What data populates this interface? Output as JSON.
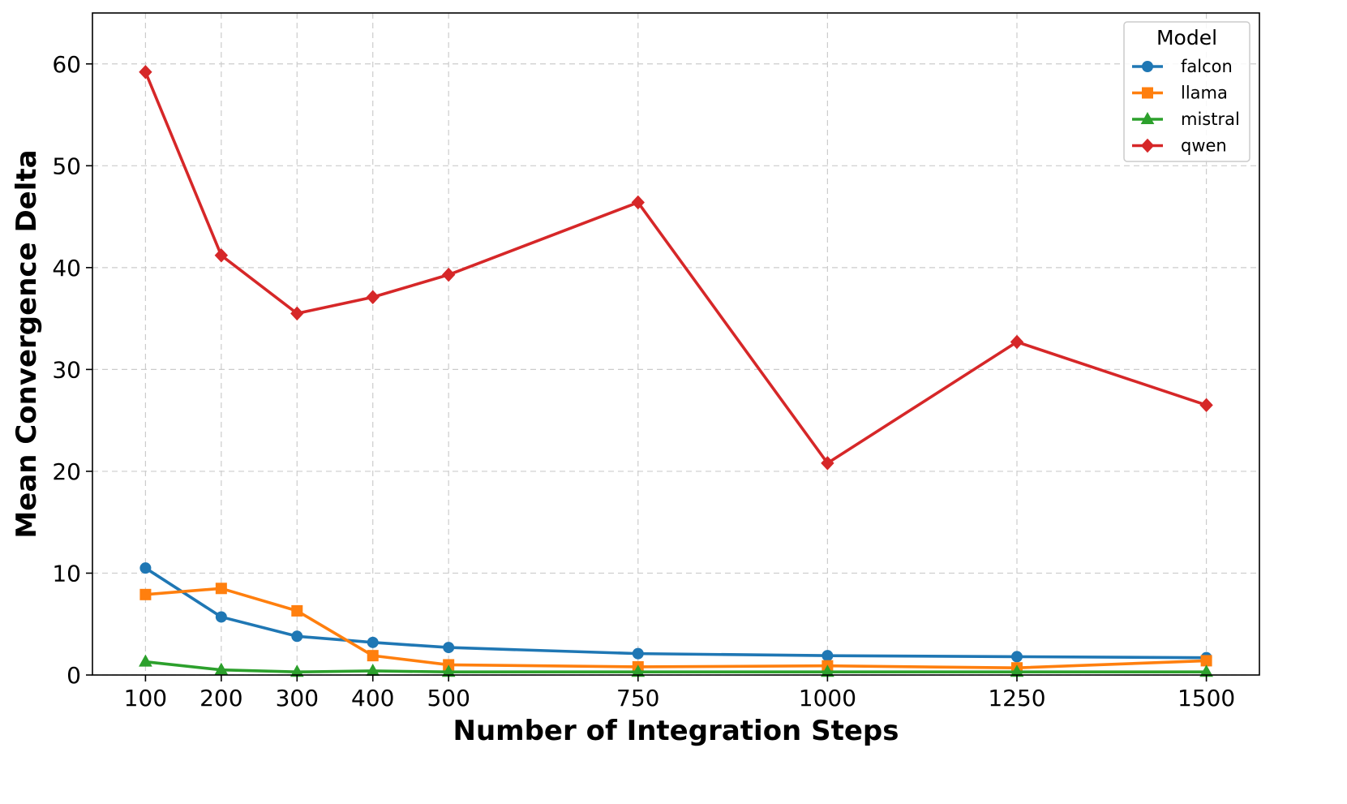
{
  "chart_data": {
    "type": "line",
    "title": "",
    "xlabel": "Number of Integration Steps",
    "ylabel": "Mean Convergence Delta",
    "x": [
      100,
      200,
      300,
      400,
      500,
      750,
      1000,
      1250,
      1500
    ],
    "xlim": [
      30,
      1570
    ],
    "ylim": [
      0,
      65
    ],
    "yticks": [
      0,
      10,
      20,
      30,
      40,
      50,
      60
    ],
    "grid": true,
    "legend": {
      "title": "Model",
      "placement": "top-right"
    },
    "series": [
      {
        "name": "falcon",
        "color": "#1f77b4",
        "marker": "circle",
        "values": [
          10.5,
          5.7,
          3.8,
          3.2,
          2.7,
          2.1,
          1.9,
          1.8,
          1.7
        ]
      },
      {
        "name": "llama",
        "color": "#ff7f0e",
        "marker": "square",
        "values": [
          7.9,
          8.5,
          6.3,
          1.9,
          1.0,
          0.8,
          0.9,
          0.7,
          1.4
        ]
      },
      {
        "name": "mistral",
        "color": "#2ca02c",
        "marker": "triangle",
        "values": [
          1.3,
          0.5,
          0.3,
          0.4,
          0.3,
          0.3,
          0.3,
          0.3,
          0.3
        ]
      },
      {
        "name": "qwen",
        "color": "#d62728",
        "marker": "diamond",
        "values": [
          59.2,
          41.2,
          35.5,
          37.1,
          39.3,
          46.4,
          20.8,
          32.7,
          26.5
        ]
      }
    ]
  }
}
